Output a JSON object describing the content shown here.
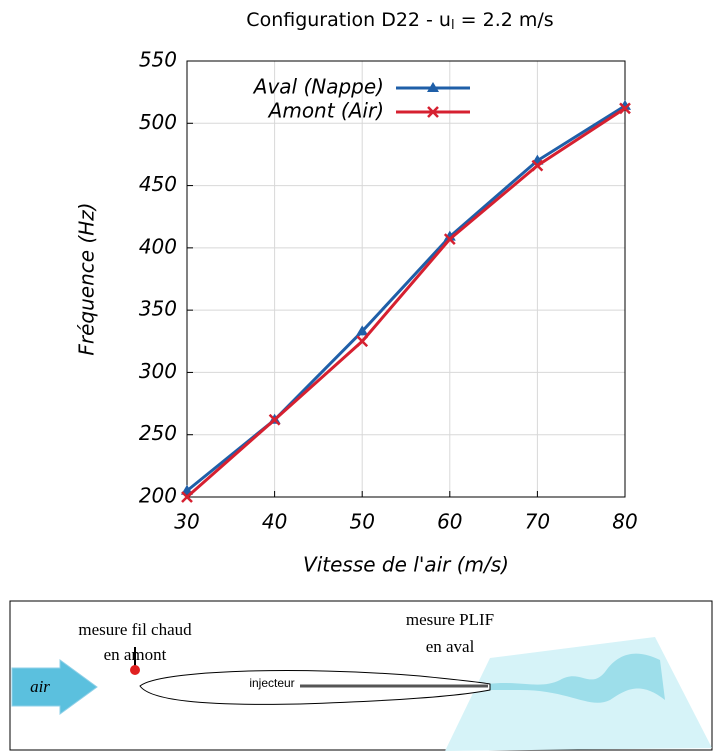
{
  "chart_data": {
    "type": "line",
    "title_parts": [
      "Configuration D22 - u",
      "l",
      " = 2.2 m/s"
    ],
    "x_label": "Vitesse de l'air (m/s)",
    "y_label": "Fréquence (Hz)",
    "x": [
      30,
      40,
      50,
      60,
      70,
      80
    ],
    "series": [
      {
        "name": "Aval (Nappe)",
        "color": "#1f5fa8",
        "marker": "triangle",
        "values": [
          205,
          262,
          333,
          409,
          470,
          514
        ]
      },
      {
        "name": "Amont (Air)",
        "color": "#d62030",
        "marker": "x",
        "values": [
          200,
          262,
          325,
          407,
          466,
          512
        ]
      }
    ],
    "xlim": [
      30,
      80
    ],
    "xticks": [
      30,
      40,
      50,
      60,
      70,
      80
    ],
    "ylim": [
      200,
      550
    ],
    "yticks": [
      200,
      250,
      300,
      350,
      400,
      450,
      500,
      550
    ],
    "grid": true,
    "legend": "top-left"
  },
  "diagram": {
    "probe_label": [
      "mesure fil chaud",
      "en amont"
    ],
    "plif_label": [
      "mesure PLIF",
      "en aval"
    ],
    "injector_label": "injecteur",
    "air_label": "air"
  }
}
